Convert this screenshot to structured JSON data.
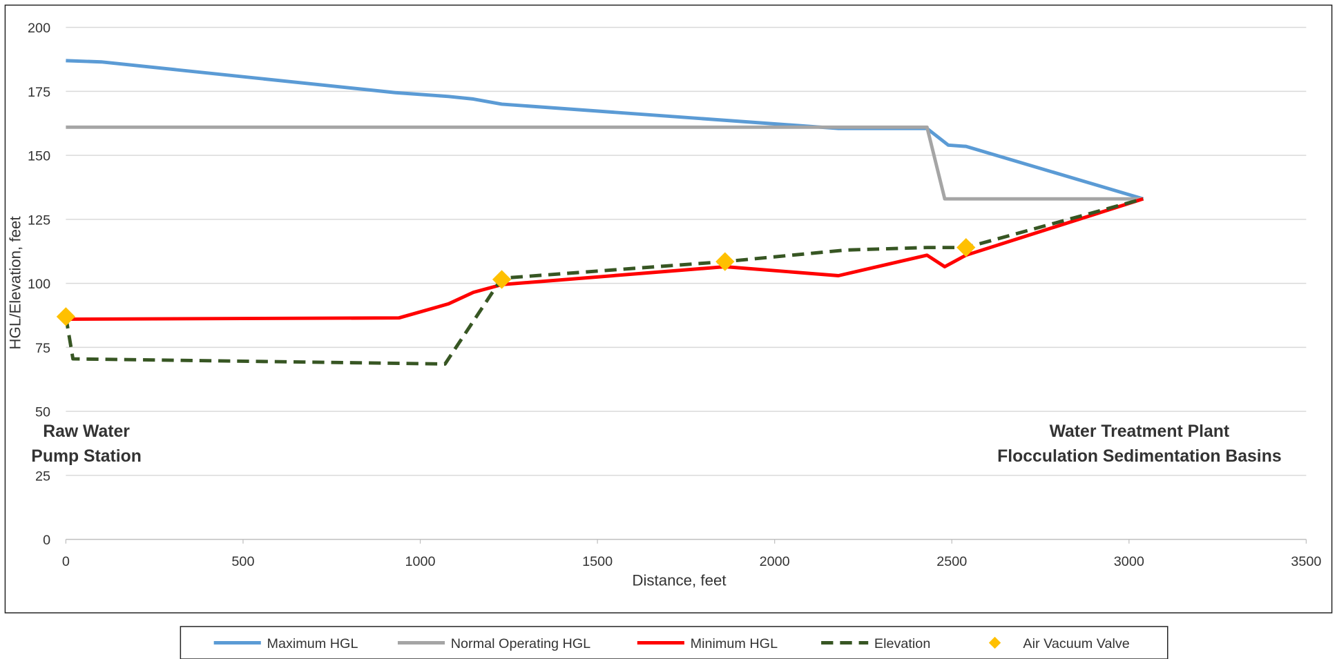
{
  "chart_data": {
    "type": "line",
    "x_label": "Distance, feet",
    "y_label": "HGL/Elevation, feet",
    "xlim": [
      0,
      3500
    ],
    "xticks": [
      0,
      500,
      1000,
      1500,
      2000,
      2500,
      3000,
      3500
    ],
    "ylim": [
      0,
      200
    ],
    "yticks": [
      0,
      25,
      50,
      75,
      100,
      125,
      150,
      175,
      200
    ],
    "grid": true,
    "legend": "bottom",
    "annotations": [
      [
        "Raw Water",
        "Pump Station"
      ],
      [
        "Water Treatment Plant",
        "Flocculation Sedimentation Basins"
      ]
    ],
    "series": [
      {
        "name": "Maximum HGL",
        "color": "#5b9bd5",
        "mode": "line",
        "x": [
          0,
          100,
          930,
          1080,
          1150,
          1230,
          2180,
          2430,
          2490,
          2540,
          3040
        ],
        "values": [
          187,
          186.5,
          174.5,
          173,
          172,
          170,
          160.5,
          160.5,
          154,
          153.5,
          133
        ]
      },
      {
        "name": "Normal Operating HGL",
        "color": "#a5a5a5",
        "mode": "line",
        "x": [
          0,
          2430,
          2480,
          3040
        ],
        "values": [
          161,
          161,
          133,
          133
        ]
      },
      {
        "name": "Minimum HGL",
        "color": "#ff0000",
        "mode": "line",
        "x": [
          0,
          940,
          1080,
          1150,
          1230,
          1860,
          2180,
          2430,
          2480,
          2540,
          3040
        ],
        "values": [
          86,
          86.5,
          92,
          96.5,
          99.5,
          106.5,
          103,
          111,
          106.5,
          111,
          133
        ]
      },
      {
        "name": "Elevation",
        "color": "#375623",
        "mode": "dashed",
        "x": [
          0,
          20,
          1070,
          1230,
          1860,
          2200,
          2430,
          2540,
          3040
        ],
        "values": [
          87,
          70.5,
          68.5,
          102,
          108.5,
          113,
          114,
          114,
          133
        ]
      },
      {
        "name": "Air Vacuum Valve",
        "color": "#ffc000",
        "mode": "markers",
        "x": [
          0,
          1230,
          1860,
          2540
        ],
        "values": [
          87,
          101.5,
          108.5,
          114
        ]
      }
    ]
  }
}
